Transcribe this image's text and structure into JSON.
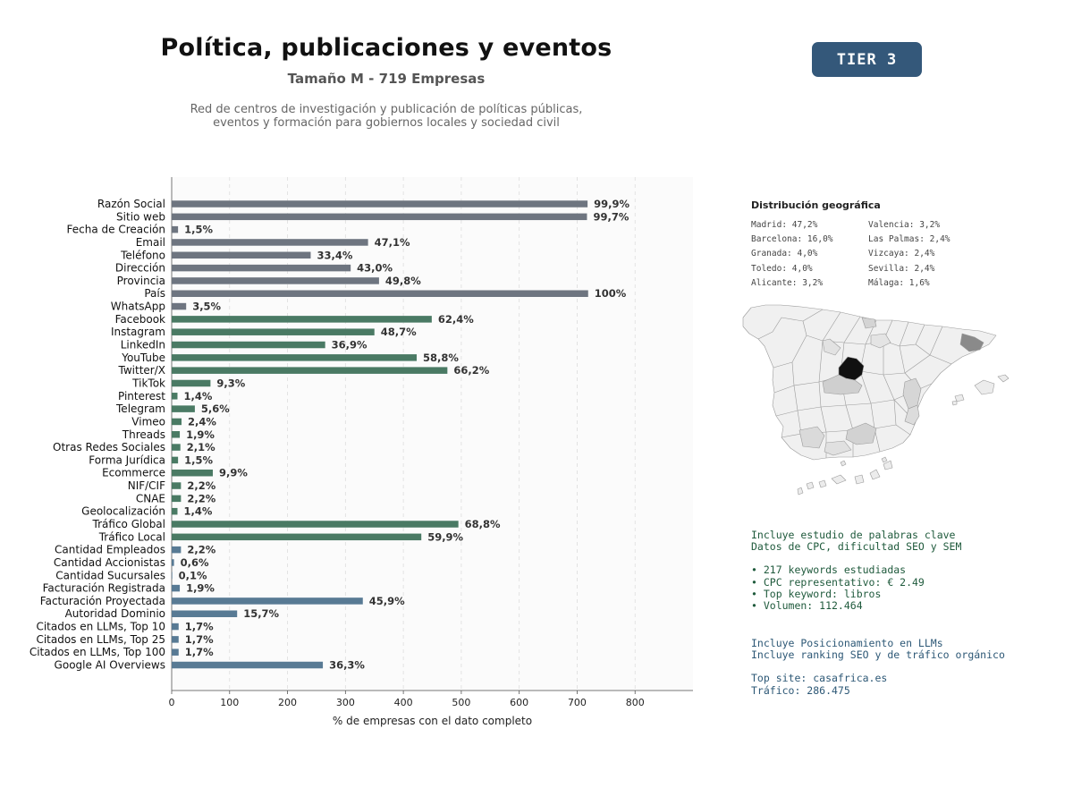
{
  "header": {
    "title": "Política, publicaciones y eventos",
    "subtitle": "Tamaño M - 719 Empresas",
    "description_line1": "Red de centros de investigación y publicación de políticas públicas,",
    "description_line2": "eventos y formación para gobiernos locales y sociedad civil",
    "tier_label": "TIER 3"
  },
  "chart_data": {
    "type": "bar",
    "orientation": "horizontal",
    "xlabel": "% de empresas con el dato completo",
    "ylabel": "",
    "xlim": [
      0,
      900
    ],
    "xticks": [
      0,
      100,
      200,
      300,
      400,
      500,
      600,
      700,
      800
    ],
    "grid": "vertical dashed",
    "categories": [
      "Razón Social",
      "Sitio web",
      "Fecha de Creación",
      "Email",
      "Teléfono",
      "Dirección",
      "Provincia",
      "País",
      "WhatsApp",
      "Facebook",
      "Instagram",
      "LinkedIn",
      "YouTube",
      "Twitter/X",
      "TikTok",
      "Pinterest",
      "Telegram",
      "Vimeo",
      "Threads",
      "Otras Redes Sociales",
      "Forma Jurídica",
      "Ecommerce",
      "NIF/CIF",
      "CNAE",
      "Geolocalización",
      "Tráfico Global",
      "Tráfico Local",
      "Cantidad Empleados",
      "Cantidad Accionistas",
      "Cantidad Sucursales",
      "Facturación Registrada",
      "Facturación Proyectada",
      "Autoridad Dominio",
      "Citados en LLMs, Top 10",
      "Citados en LLMs, Top 25",
      "Citados en LLMs, Top 100",
      "Google AI Overviews"
    ],
    "values": [
      718,
      717,
      11,
      339,
      240,
      309,
      358,
      719,
      25,
      449,
      350,
      265,
      423,
      476,
      67,
      10,
      40,
      17,
      14,
      15,
      11,
      71,
      16,
      16,
      10,
      495,
      431,
      16,
      4,
      1,
      14,
      330,
      113,
      12,
      12,
      12,
      261
    ],
    "labels": [
      "99,9%",
      "99,7%",
      "1,5%",
      "47,1%",
      "33,4%",
      "43,0%",
      "49,8%",
      "100%",
      "3,5%",
      "62,4%",
      "48,7%",
      "36,9%",
      "58,8%",
      "66,2%",
      "9,3%",
      "1,4%",
      "5,6%",
      "2,4%",
      "1,9%",
      "2,1%",
      "1,5%",
      "9,9%",
      "2,2%",
      "2,2%",
      "1,4%",
      "68,8%",
      "59,9%",
      "2,2%",
      "0,6%",
      "0,1%",
      "1,9%",
      "45,9%",
      "15,7%",
      "1,7%",
      "1,7%",
      "1,7%",
      "36,3%"
    ],
    "groups": [
      0,
      0,
      0,
      0,
      0,
      0,
      0,
      0,
      0,
      1,
      1,
      1,
      1,
      1,
      1,
      1,
      1,
      1,
      1,
      1,
      1,
      1,
      1,
      1,
      1,
      1,
      1,
      2,
      2,
      2,
      2,
      2,
      2,
      2,
      2,
      2,
      2
    ],
    "group_colors": [
      "#6e7580",
      "#4a7a64",
      "#587a94"
    ]
  },
  "geo": {
    "title": "Distribución geográfica",
    "items": [
      "Madrid: 47,2%",
      "Valencia: 3,2%",
      "Barcelona: 16,0%",
      "Las Palmas: 2,4%",
      "Granada: 4,0%",
      "Vizcaya: 2,4%",
      "Toledo: 4,0%",
      "Sevilla: 2,4%",
      "Alicante: 3,2%",
      "Málaga: 1,6%"
    ]
  },
  "seo": {
    "line1": "Incluye estudio de palabras clave",
    "line2": "Datos de CPC, dificultad SEO y SEM",
    "bullet1": "• 217 keywords estudiadas",
    "bullet2": "• CPC representativo: € 2.49",
    "bullet3": "• Top keyword: libros",
    "bullet4": "• Volumen: 112.464"
  },
  "llm": {
    "line1": "Incluye Posicionamiento en LLMs",
    "line2": "Incluye ranking SEO y de tráfico orgánico",
    "top_site": "Top site: casafrica.es",
    "traffic": "Tráfico: 286.475"
  }
}
